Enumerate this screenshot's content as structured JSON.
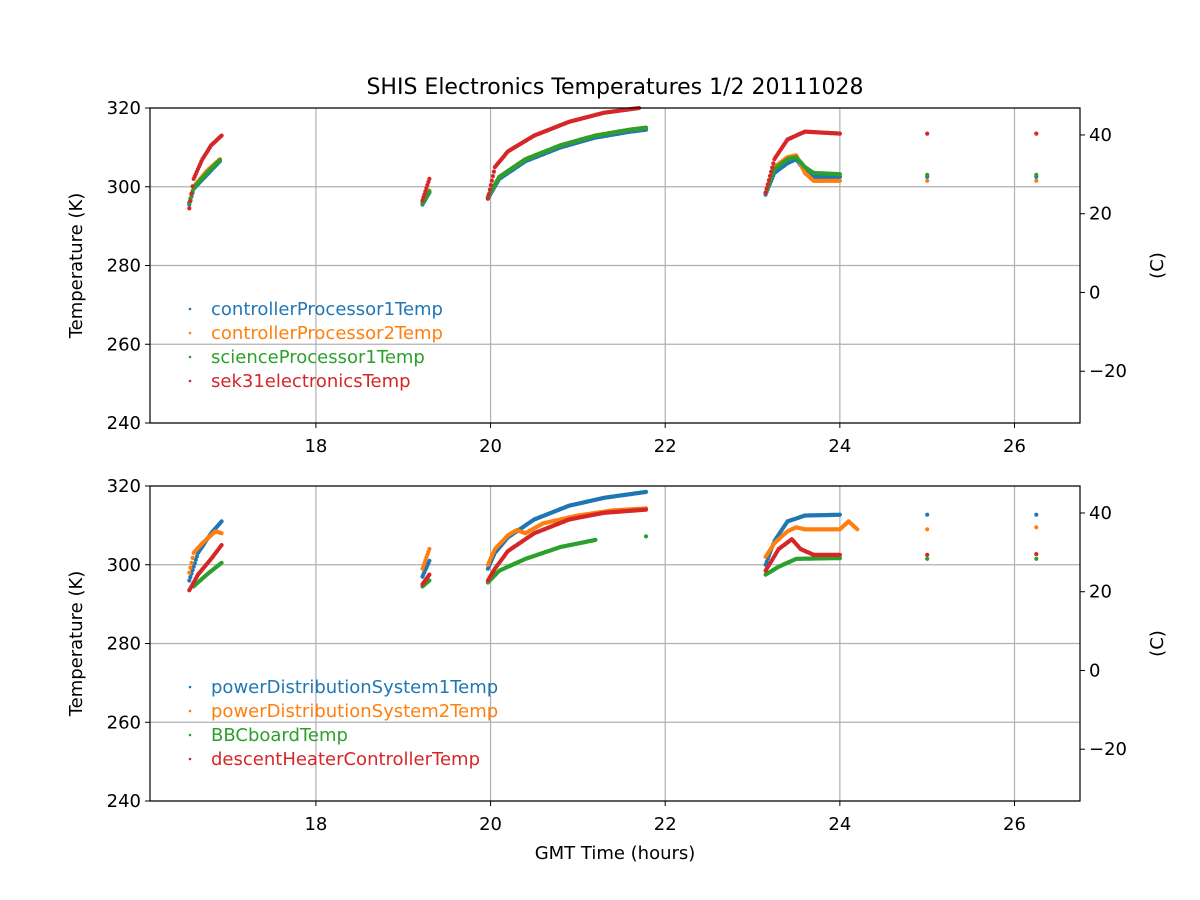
{
  "title": "SHIS Electronics Temperatures 1/2 20111028",
  "xlabel": "GMT Time (hours)",
  "chart_data": [
    {
      "type": "scatter",
      "xlim": [
        16.1,
        26.75
      ],
      "ylim": [
        240,
        320
      ],
      "ylabel": "Temperature (K)",
      "y2label": "(C)",
      "x_ticks": [
        18,
        20,
        22,
        24,
        26
      ],
      "y_ticks": [
        240,
        260,
        280,
        300,
        320
      ],
      "y2_ticks": [
        -20,
        0,
        20,
        40
      ],
      "y2_tick_labels": [
        "−20",
        "0",
        "20",
        "40"
      ],
      "grid": true,
      "legend_position": "lower-left",
      "series": [
        {
          "name": "controllerProcessor1Temp",
          "color": "#1f77b4",
          "points": [
            [
              16.55,
              295.5
            ],
            [
              16.6,
              299.5
            ],
            [
              16.75,
              303
            ],
            [
              16.9,
              306.5
            ],
            [
              19.22,
              295.5
            ],
            [
              19.3,
              298.5
            ],
            [
              19.97,
              297
            ],
            [
              20.1,
              302
            ],
            [
              20.4,
              306.5
            ],
            [
              20.8,
              310
            ],
            [
              21.2,
              312.5
            ],
            [
              21.6,
              314
            ],
            [
              21.78,
              314.5
            ],
            [
              23.15,
              298
            ],
            [
              23.25,
              303.5
            ],
            [
              23.4,
              306
            ],
            [
              23.5,
              307
            ],
            [
              23.6,
              304
            ],
            [
              23.7,
              302.5
            ],
            [
              24.0,
              302.5
            ],
            [
              25.0,
              302.5
            ],
            [
              26.25,
              302.5
            ]
          ]
        },
        {
          "name": "controllerProcessor2Temp",
          "color": "#ff7f0e",
          "points": [
            [
              16.55,
              296
            ],
            [
              16.6,
              300
            ],
            [
              16.75,
              304
            ],
            [
              16.9,
              307
            ],
            [
              19.22,
              296
            ],
            [
              19.3,
              299
            ],
            [
              19.97,
              297.5
            ],
            [
              20.1,
              302.5
            ],
            [
              20.4,
              307
            ],
            [
              20.8,
              310.5
            ],
            [
              21.2,
              313
            ],
            [
              21.6,
              314.5
            ],
            [
              21.78,
              315
            ],
            [
              23.15,
              298.5
            ],
            [
              23.25,
              305
            ],
            [
              23.4,
              307.5
            ],
            [
              23.5,
              308
            ],
            [
              23.6,
              303.5
            ],
            [
              23.7,
              301.5
            ],
            [
              24.0,
              301.5
            ],
            [
              25.0,
              301.5
            ],
            [
              26.25,
              301.5
            ]
          ]
        },
        {
          "name": "scienceProcessor1Temp",
          "color": "#2ca02c",
          "points": [
            [
              16.55,
              296
            ],
            [
              16.6,
              299.8
            ],
            [
              16.75,
              303.5
            ],
            [
              16.9,
              306.8
            ],
            [
              19.22,
              295.8
            ],
            [
              19.3,
              298.8
            ],
            [
              19.97,
              297.5
            ],
            [
              20.1,
              302.5
            ],
            [
              20.4,
              307
            ],
            [
              20.8,
              310.5
            ],
            [
              21.2,
              313
            ],
            [
              21.6,
              314.5
            ],
            [
              21.78,
              315
            ],
            [
              23.15,
              298.5
            ],
            [
              23.25,
              304.5
            ],
            [
              23.4,
              307
            ],
            [
              23.5,
              307.5
            ],
            [
              23.6,
              305
            ],
            [
              23.7,
              303.5
            ],
            [
              24.0,
              303.2
            ],
            [
              25.0,
              303
            ],
            [
              26.25,
              303
            ]
          ]
        },
        {
          "name": "sek31electronicsTemp",
          "color": "#d62728",
          "points": [
            [
              16.55,
              294.5
            ],
            [
              16.6,
              302
            ],
            [
              16.7,
              307
            ],
            [
              16.8,
              310.5
            ],
            [
              16.92,
              313
            ],
            [
              19.22,
              296.5
            ],
            [
              19.3,
              302
            ],
            [
              19.97,
              297
            ],
            [
              20.05,
              305
            ],
            [
              20.2,
              309
            ],
            [
              20.5,
              313
            ],
            [
              20.9,
              316.5
            ],
            [
              21.3,
              318.8
            ],
            [
              21.7,
              320
            ],
            [
              23.15,
              298.5
            ],
            [
              23.25,
              307
            ],
            [
              23.4,
              312
            ],
            [
              23.6,
              314
            ],
            [
              24.0,
              313.5
            ],
            [
              25.0,
              313.5
            ],
            [
              26.25,
              313.5
            ]
          ]
        }
      ]
    },
    {
      "type": "scatter",
      "xlim": [
        16.1,
        26.75
      ],
      "ylim": [
        240,
        320
      ],
      "ylabel": "Temperature (K)",
      "y2label": "(C)",
      "x_ticks": [
        18,
        20,
        22,
        24,
        26
      ],
      "y_ticks": [
        240,
        260,
        280,
        300,
        320
      ],
      "y2_ticks": [
        -20,
        0,
        20,
        40
      ],
      "y2_tick_labels": [
        "−20",
        "0",
        "20",
        "40"
      ],
      "grid": true,
      "legend_position": "lower-left",
      "series": [
        {
          "name": "powerDistributionSystem1Temp",
          "color": "#1f77b4",
          "points": [
            [
              16.55,
              296
            ],
            [
              16.65,
              303
            ],
            [
              16.8,
              308
            ],
            [
              16.92,
              311
            ],
            [
              19.22,
              297
            ],
            [
              19.3,
              301
            ],
            [
              19.97,
              299
            ],
            [
              20.05,
              303
            ],
            [
              20.2,
              307
            ],
            [
              20.5,
              311.5
            ],
            [
              20.9,
              315
            ],
            [
              21.3,
              317
            ],
            [
              21.78,
              318.5
            ],
            [
              23.15,
              300
            ],
            [
              23.25,
              306
            ],
            [
              23.4,
              311
            ],
            [
              23.6,
              312.5
            ],
            [
              24.0,
              312.7
            ],
            [
              25.0,
              312.7
            ],
            [
              26.25,
              312.7
            ]
          ]
        },
        {
          "name": "powerDistributionSystem2Temp",
          "color": "#ff7f0e",
          "points": [
            [
              16.55,
              298
            ],
            [
              16.6,
              303
            ],
            [
              16.7,
              305.5
            ],
            [
              16.85,
              308.5
            ],
            [
              16.92,
              308
            ],
            [
              19.22,
              299
            ],
            [
              19.3,
              304
            ],
            [
              19.97,
              300
            ],
            [
              20.05,
              304
            ],
            [
              20.2,
              307.5
            ],
            [
              20.3,
              308.8
            ],
            [
              20.4,
              308
            ],
            [
              20.6,
              310.5
            ],
            [
              21.0,
              312.5
            ],
            [
              21.4,
              313.8
            ],
            [
              21.78,
              314.3
            ],
            [
              23.15,
              302
            ],
            [
              23.25,
              305.5
            ],
            [
              23.4,
              308.5
            ],
            [
              23.5,
              309.5
            ],
            [
              23.6,
              309
            ],
            [
              24.0,
              309
            ],
            [
              24.1,
              311
            ],
            [
              24.2,
              309
            ],
            [
              25.0,
              309
            ],
            [
              26.25,
              309.5
            ]
          ]
        },
        {
          "name": "BBCboardTemp",
          "color": "#2ca02c",
          "points": [
            [
              16.6,
              294.5
            ],
            [
              16.75,
              297.5
            ],
            [
              16.92,
              300.5
            ],
            [
              19.22,
              294.5
            ],
            [
              19.3,
              296
            ],
            [
              19.97,
              295.5
            ],
            [
              20.1,
              298.5
            ],
            [
              20.4,
              301.5
            ],
            [
              20.8,
              304.5
            ],
            [
              21.2,
              306.3
            ],
            [
              21.78,
              307.2
            ],
            [
              23.15,
              297.5
            ],
            [
              23.3,
              299.5
            ],
            [
              23.5,
              301.5
            ],
            [
              24.0,
              301.7
            ],
            [
              25.0,
              301.5
            ],
            [
              26.25,
              301.5
            ]
          ]
        },
        {
          "name": "descentHeaterControllerTemp",
          "color": "#d62728",
          "points": [
            [
              16.55,
              293.5
            ],
            [
              16.65,
              297.5
            ],
            [
              16.8,
              301.5
            ],
            [
              16.92,
              305
            ],
            [
              19.22,
              295
            ],
            [
              19.3,
              297.5
            ],
            [
              19.97,
              296
            ],
            [
              20.05,
              299
            ],
            [
              20.2,
              303.5
            ],
            [
              20.5,
              308
            ],
            [
              20.9,
              311.5
            ],
            [
              21.3,
              313.2
            ],
            [
              21.78,
              314
            ],
            [
              23.15,
              298.5
            ],
            [
              23.3,
              304
            ],
            [
              23.45,
              306.5
            ],
            [
              23.55,
              304
            ],
            [
              23.7,
              302.5
            ],
            [
              24.0,
              302.5
            ],
            [
              25.0,
              302.5
            ],
            [
              26.25,
              302.7
            ]
          ]
        }
      ]
    }
  ]
}
